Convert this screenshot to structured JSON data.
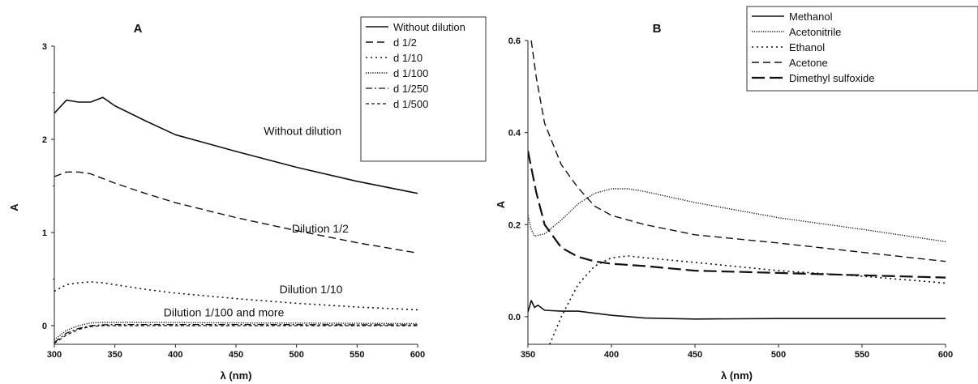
{
  "chart_data": [
    {
      "type": "line",
      "title": "A",
      "xlabel": "λ (nm)",
      "ylabel": "A",
      "xlim": [
        300,
        600
      ],
      "ylim": [
        -0.2,
        3
      ],
      "xticks": [
        300,
        350,
        400,
        450,
        500,
        550,
        600
      ],
      "yticks": [
        0,
        1,
        2,
        3
      ],
      "grid": false,
      "legend_position": "top-right",
      "x": [
        300,
        310,
        320,
        330,
        340,
        350,
        375,
        400,
        450,
        500,
        550,
        600
      ],
      "series": [
        {
          "name": "Without dilution",
          "dash": "solid",
          "values": [
            2.28,
            2.42,
            2.4,
            2.4,
            2.45,
            2.36,
            2.2,
            2.05,
            1.87,
            1.7,
            1.55,
            1.42
          ]
        },
        {
          "name": "d 1/2",
          "dash": "dashed",
          "values": [
            1.6,
            1.65,
            1.65,
            1.63,
            1.58,
            1.53,
            1.42,
            1.32,
            1.16,
            1.02,
            0.89,
            0.78
          ]
        },
        {
          "name": "d 1/10",
          "dash": "dotted",
          "values": [
            0.37,
            0.44,
            0.46,
            0.47,
            0.46,
            0.44,
            0.39,
            0.35,
            0.29,
            0.24,
            0.2,
            0.17
          ]
        },
        {
          "name": "d 1/100",
          "dash": "finedot",
          "values": [
            -0.15,
            -0.05,
            0.0,
            0.03,
            0.035,
            0.035,
            0.035,
            0.033,
            0.03,
            0.028,
            0.025,
            0.022
          ]
        },
        {
          "name": "d 1/250",
          "dash": "dashdot",
          "values": [
            -0.18,
            -0.08,
            -0.03,
            0.0,
            0.01,
            0.012,
            0.012,
            0.012,
            0.012,
            0.011,
            0.01,
            0.009
          ]
        },
        {
          "name": "d 1/500",
          "dash": "shortdash",
          "values": [
            -0.19,
            -0.1,
            -0.04,
            -0.01,
            0.0,
            0.0,
            0.0,
            0.0,
            0.0,
            0.0,
            0.0,
            0.0
          ]
        }
      ],
      "annotations": [
        {
          "text": "Without dilution",
          "x": 505,
          "y": 2.05
        },
        {
          "text": "Dilution 1/2",
          "x": 543,
          "y": 1.0
        },
        {
          "text": "Dilution 1/10",
          "x": 538,
          "y": 0.35
        },
        {
          "text": "Dilution 1/100 and more",
          "x": 440,
          "y": 0.1
        }
      ]
    },
    {
      "type": "line",
      "title": "B",
      "xlabel": "λ (nm)",
      "ylabel": "A",
      "xlim": [
        350,
        600
      ],
      "ylim": [
        -0.06,
        0.6
      ],
      "xticks": [
        350,
        400,
        450,
        500,
        550,
        600
      ],
      "yticks": [
        0.0,
        0.2,
        0.4,
        0.6
      ],
      "grid": false,
      "legend_position": "top-right",
      "series": [
        {
          "name": "Methanol",
          "dash": "solid",
          "x": [
            350,
            352,
            354,
            356,
            360,
            370,
            380,
            400,
            420,
            450,
            500,
            600
          ],
          "values": [
            0.01,
            0.035,
            0.02,
            0.025,
            0.014,
            0.012,
            0.012,
            0.003,
            -0.003,
            -0.005,
            -0.004,
            -0.004
          ]
        },
        {
          "name": "Acetonitrile",
          "dash": "finedot",
          "x": [
            350,
            352,
            354,
            360,
            370,
            380,
            390,
            400,
            410,
            420,
            450,
            500,
            550,
            600
          ],
          "values": [
            0.22,
            0.19,
            0.175,
            0.18,
            0.21,
            0.245,
            0.268,
            0.278,
            0.278,
            0.272,
            0.248,
            0.215,
            0.19,
            0.163
          ]
        },
        {
          "name": "Ethanol",
          "dash": "dotted",
          "x": [
            363,
            370,
            380,
            390,
            400,
            410,
            420,
            450,
            500,
            550,
            600
          ],
          "values": [
            -0.06,
            0.0,
            0.07,
            0.11,
            0.128,
            0.132,
            0.128,
            0.118,
            0.1,
            0.088,
            0.073
          ]
        },
        {
          "name": "Acetone",
          "dash": "dashed",
          "x": [
            352,
            355,
            360,
            370,
            380,
            390,
            400,
            420,
            450,
            500,
            550,
            600
          ],
          "values": [
            0.6,
            0.52,
            0.42,
            0.33,
            0.28,
            0.24,
            0.22,
            0.2,
            0.178,
            0.16,
            0.14,
            0.12
          ]
        },
        {
          "name": "Dimethyl  sulfoxide",
          "dash": "longdash",
          "x": [
            350,
            355,
            360,
            370,
            380,
            390,
            400,
            420,
            450,
            500,
            550,
            600
          ],
          "values": [
            0.36,
            0.27,
            0.2,
            0.15,
            0.13,
            0.12,
            0.115,
            0.11,
            0.1,
            0.095,
            0.09,
            0.085
          ]
        }
      ]
    }
  ]
}
